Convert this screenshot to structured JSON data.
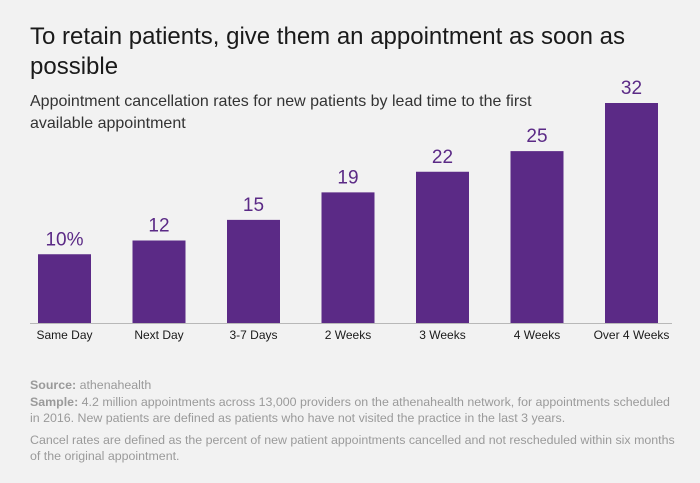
{
  "title": "To retain patients, give them an appointment as soon as possible",
  "subtitle": "Appointment cancellation rates for new patients by lead time to the first available appointment",
  "colors": {
    "bar": "#5b2a86",
    "baseline": "#b8b8b8",
    "text": "#1a1a1a",
    "notes": "#9a9a9a",
    "background": "#f2f2f2"
  },
  "chart_data": {
    "type": "bar",
    "title": "To retain patients, give them an appointment as soon as possible",
    "subtitle": "Appointment cancellation rates for new patients by lead time to the first available appointment",
    "categories": [
      "Same Day",
      "Next Day",
      "3-7 Days",
      "2 Weeks",
      "3 Weeks",
      "4 Weeks",
      "Over 4 Weeks"
    ],
    "values": [
      10,
      12,
      15,
      19,
      22,
      25,
      32
    ],
    "data_labels": [
      "10%",
      "12",
      "15",
      "19",
      "22",
      "25",
      "32"
    ],
    "xlabel": "",
    "ylabel": "",
    "ylim": [
      0,
      32
    ],
    "grid": false,
    "legend": "none"
  },
  "notes": {
    "source_label": "Source:",
    "source_text": " athenahealth",
    "sample_label": "Sample:",
    "sample_text": " 4.2 million appointments across 13,000 providers on the athenahealth network, for appointments scheduled in 2016. New patients are defined as patients who have not visited the practice in the last 3 years.",
    "cancel_text": "Cancel rates are defined as the percent of new patient appointments cancelled and not rescheduled within six months of the original appointment."
  }
}
